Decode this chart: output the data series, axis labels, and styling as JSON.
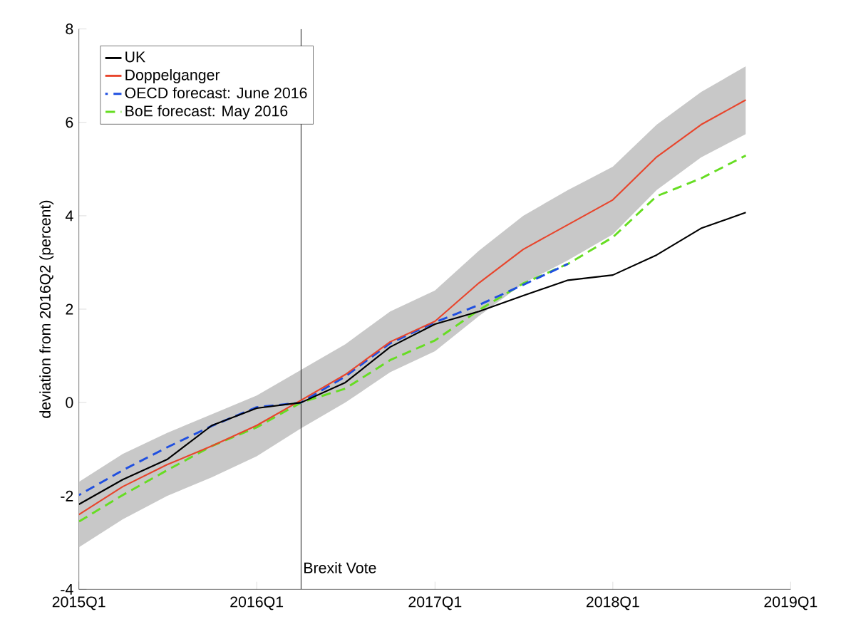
{
  "chart_data": {
    "type": "line",
    "ylabel": "deviation from 2016Q2 (percent)",
    "x": [
      "2015-01",
      "2015-04",
      "2015-07",
      "2015-10",
      "2016-01",
      "2016-04",
      "2016-07",
      "2016-10",
      "2017-01",
      "2017-04",
      "2017-07",
      "2017-10",
      "2018-01",
      "2018-04",
      "2018-07",
      "2018-10"
    ],
    "xlim": [
      "2015-01",
      "2019-01"
    ],
    "xticks": [
      {
        "value": "2015-01",
        "label": "2015Q1"
      },
      {
        "value": "2016-01",
        "label": "2016Q1"
      },
      {
        "value": "2017-01",
        "label": "2017Q1"
      },
      {
        "value": "2018-01",
        "label": "2018Q1"
      },
      {
        "value": "2019-01",
        "label": "2019Q1"
      }
    ],
    "ylim": [
      -4,
      8
    ],
    "yticks": [
      -4,
      -2,
      0,
      2,
      4,
      6,
      8
    ],
    "grid": false,
    "legend": "top left",
    "series": [
      {
        "name": "UK",
        "color": "#000000",
        "line_style": "solid",
        "values": [
          -2.18,
          -1.65,
          -1.22,
          -0.49,
          -0.12,
          0,
          0.43,
          1.19,
          1.68,
          1.95,
          2.29,
          2.62,
          2.73,
          3.16,
          3.73,
          4.07
        ]
      },
      {
        "name": "Doppelganger",
        "color": "#e8452c",
        "line_style": "solid",
        "values": [
          -2.4,
          -1.8,
          -1.33,
          -0.93,
          -0.49,
          0.05,
          0.6,
          1.3,
          1.74,
          2.56,
          3.28,
          3.81,
          4.34,
          5.26,
          5.95,
          6.48
        ],
        "lower": [
          -3.1,
          -2.5,
          -2.0,
          -1.6,
          -1.15,
          -0.55,
          0.0,
          0.65,
          1.1,
          1.85,
          2.55,
          3.05,
          3.6,
          4.55,
          5.25,
          5.75
        ],
        "upper": [
          -1.7,
          -1.1,
          -0.65,
          -0.25,
          0.15,
          0.7,
          1.25,
          1.95,
          2.4,
          3.25,
          4.0,
          4.55,
          5.05,
          5.95,
          6.65,
          7.2
        ]
      },
      {
        "name": "OECD forecast: June 2016",
        "color": "#1f4fe0",
        "line_style": "dashed",
        "x": [
          "2015-01",
          "2015-04",
          "2015-07",
          "2015-10",
          "2016-01",
          "2016-04",
          "2016-07",
          "2016-10",
          "2017-01",
          "2017-04",
          "2017-07",
          "2017-10"
        ],
        "values": [
          -1.98,
          -1.45,
          -0.96,
          -0.5,
          -0.1,
          0,
          0.56,
          1.27,
          1.72,
          2.09,
          2.52,
          2.97
        ]
      },
      {
        "name": "BoE forecast: May 2016",
        "color": "#66dd22",
        "line_style": "dashed",
        "values": [
          -2.55,
          -1.98,
          -1.45,
          -0.93,
          -0.53,
          0,
          0.3,
          0.91,
          1.33,
          1.98,
          2.55,
          2.97,
          3.54,
          4.42,
          4.8,
          5.29
        ]
      }
    ],
    "ref_lines": [
      {
        "axis": "x",
        "value": "2016-04",
        "label": "Brexit Vote",
        "color": "#000000"
      }
    ]
  }
}
